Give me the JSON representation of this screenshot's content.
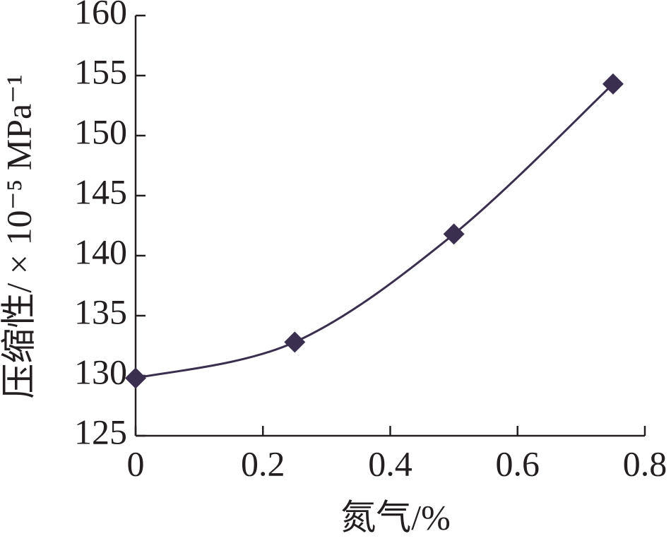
{
  "chart_data": {
    "type": "line",
    "x_label": "氮气/%",
    "y_label": "压缩性/ × 10⁻⁵ MPa⁻¹",
    "series": [
      {
        "name": "压缩性",
        "color": "#3b2f4f",
        "x": [
          0,
          0.25,
          0.5,
          0.75
        ],
        "values": [
          129.8,
          132.8,
          141.8,
          154.3
        ]
      }
    ],
    "xlim": [
      0,
      0.8
    ],
    "xticks": [
      0,
      0.2,
      0.4,
      0.6,
      0.8
    ],
    "ylim": [
      125,
      160
    ],
    "yticks": [
      125,
      130,
      135,
      140,
      145,
      150,
      155,
      160
    ],
    "grid": false,
    "marker": "diamond",
    "smooth": true
  }
}
